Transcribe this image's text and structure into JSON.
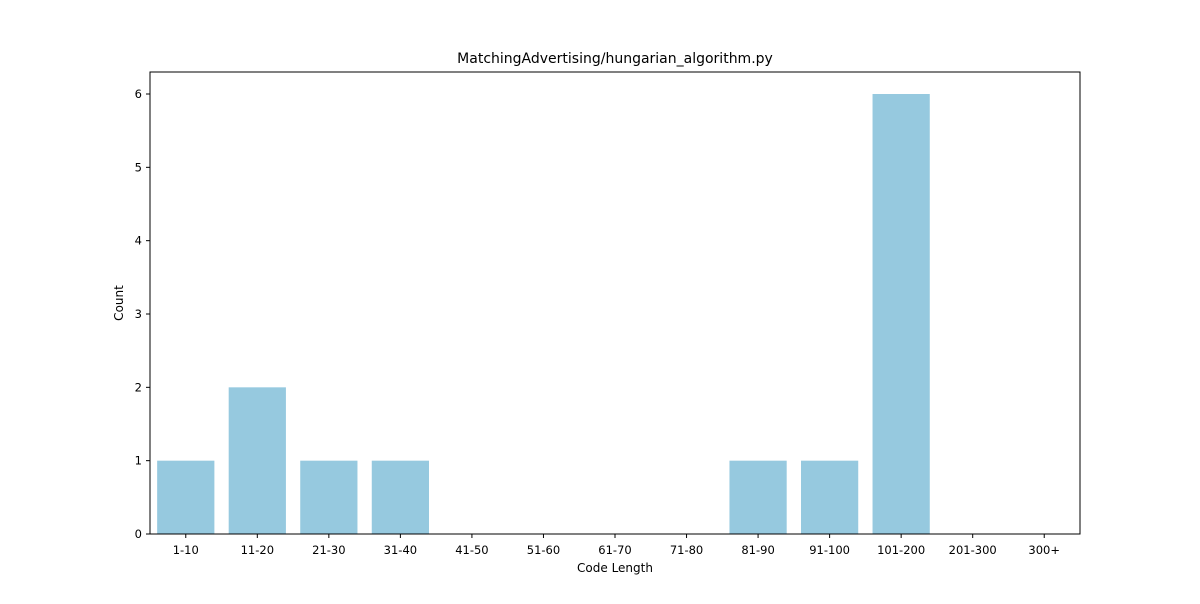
{
  "chart_data": {
    "type": "bar",
    "title": "MatchingAdvertising/hungarian_algorithm.py",
    "xlabel": "Code Length",
    "ylabel": "Count",
    "categories": [
      "1-10",
      "11-20",
      "21-30",
      "31-40",
      "41-50",
      "51-60",
      "61-70",
      "71-80",
      "81-90",
      "91-100",
      "101-200",
      "201-300",
      "300+"
    ],
    "values": [
      1,
      2,
      1,
      1,
      0,
      0,
      0,
      0,
      1,
      1,
      6,
      0,
      0
    ],
    "yticks": [
      0,
      1,
      2,
      3,
      4,
      5,
      6
    ],
    "ylim": [
      0,
      6.3
    ],
    "grid": false,
    "bar_color": "#96c9df"
  }
}
